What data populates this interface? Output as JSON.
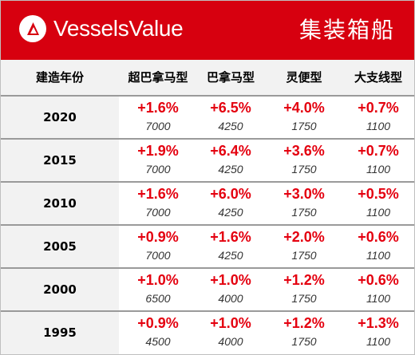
{
  "brand": {
    "name": "VesselsValue",
    "logo_icon": "triangle-arrow-logo-icon"
  },
  "title": "集装箱船",
  "colors": {
    "banner": "#d7000f",
    "change_text": "#e4000f"
  },
  "columns": [
    "建造年份",
    "超巴拿马型",
    "巴拿马型",
    "灵便型",
    "大支线型"
  ],
  "rows": [
    {
      "year": "2020",
      "cells": [
        {
          "pct": "+1.6%",
          "val": "7000"
        },
        {
          "pct": "+6.5%",
          "val": "4250"
        },
        {
          "pct": "+4.0%",
          "val": "1750"
        },
        {
          "pct": "+0.7%",
          "val": "1100"
        }
      ]
    },
    {
      "year": "2015",
      "cells": [
        {
          "pct": "+1.9%",
          "val": "7000"
        },
        {
          "pct": "+6.4%",
          "val": "4250"
        },
        {
          "pct": "+3.6%",
          "val": "1750"
        },
        {
          "pct": "+0.7%",
          "val": "1100"
        }
      ]
    },
    {
      "year": "2010",
      "cells": [
        {
          "pct": "+1.6%",
          "val": "7000"
        },
        {
          "pct": "+6.0%",
          "val": "4250"
        },
        {
          "pct": "+3.0%",
          "val": "1750"
        },
        {
          "pct": "+0.5%",
          "val": "1100"
        }
      ]
    },
    {
      "year": "2005",
      "cells": [
        {
          "pct": "+0.9%",
          "val": "7000"
        },
        {
          "pct": "+1.6%",
          "val": "4250"
        },
        {
          "pct": "+2.0%",
          "val": "1750"
        },
        {
          "pct": "+0.6%",
          "val": "1100"
        }
      ]
    },
    {
      "year": "2000",
      "cells": [
        {
          "pct": "+1.0%",
          "val": "6500"
        },
        {
          "pct": "+1.0%",
          "val": "4000"
        },
        {
          "pct": "+1.2%",
          "val": "1750"
        },
        {
          "pct": "+0.6%",
          "val": "1100"
        }
      ]
    },
    {
      "year": "1995",
      "cells": [
        {
          "pct": "+0.9%",
          "val": "4500"
        },
        {
          "pct": "+1.0%",
          "val": "4000"
        },
        {
          "pct": "+1.2%",
          "val": "1750"
        },
        {
          "pct": "+1.3%",
          "val": "1100"
        }
      ]
    }
  ]
}
